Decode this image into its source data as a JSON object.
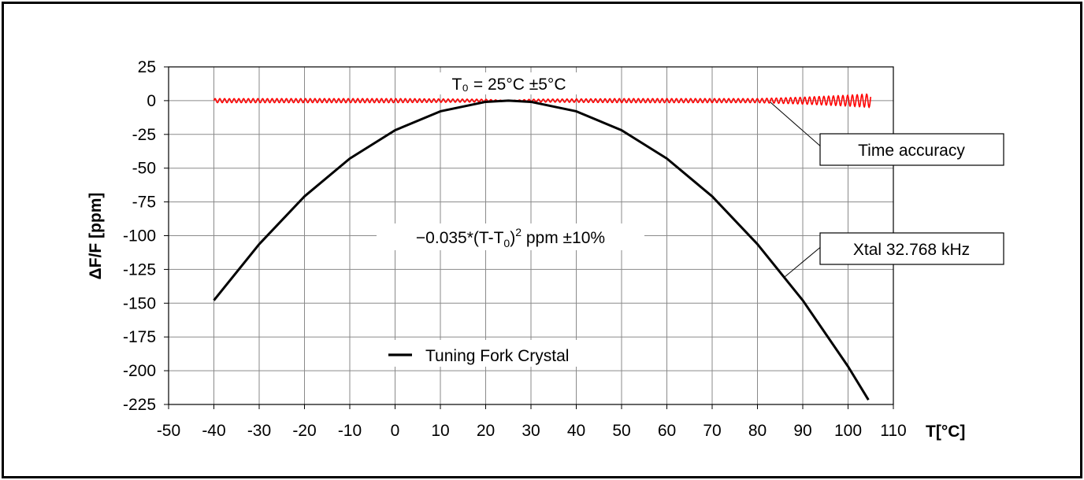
{
  "chart_data": {
    "type": "line",
    "xlabel": "T[°C]",
    "ylabel": "ΔF/F [ppm]",
    "xlim": [
      -50,
      110
    ],
    "ylim": [
      -225,
      25
    ],
    "xticks": [
      -50,
      -40,
      -30,
      -20,
      -10,
      0,
      10,
      20,
      30,
      40,
      50,
      60,
      70,
      80,
      90,
      100,
      110
    ],
    "yticks": [
      25,
      0,
      -25,
      -50,
      -75,
      -100,
      -125,
      -150,
      -175,
      -200,
      -225
    ],
    "grid": true,
    "legend": {
      "position": "bottom-center",
      "entries": [
        "Tuning Fork Crystal"
      ]
    },
    "series": [
      {
        "name": "Tuning Fork Crystal",
        "color": "#000000",
        "x": [
          -40,
          -30,
          -20,
          -10,
          0,
          10,
          20,
          25,
          30,
          40,
          50,
          60,
          70,
          80,
          90,
          100,
          104.5
        ],
        "y": [
          -147.9,
          -106.3,
          -70.9,
          -42.9,
          -21.9,
          -7.9,
          -0.9,
          0,
          -0.9,
          -7.9,
          -21.9,
          -42.9,
          -70.9,
          -106.3,
          -147.9,
          -196.9,
          -221.6
        ]
      },
      {
        "name": "Time accuracy",
        "color": "#ff0000",
        "x": [
          -40,
          -20,
          0,
          20,
          25,
          30,
          50,
          70,
          80,
          90,
          100,
          105
        ],
        "y_min": [
          -1.5,
          -1.5,
          -1.5,
          -1,
          0,
          -1,
          -1.5,
          -1.5,
          -1.5,
          -2.5,
          -4,
          -5
        ],
        "y_max": [
          1.5,
          1.5,
          1.5,
          1,
          0,
          1,
          1.5,
          1.5,
          1.5,
          2.5,
          4,
          5
        ]
      }
    ],
    "annotations": {
      "t0": "T₀ = 25°C ±5°C",
      "formula_prefix": "−0.035*(T-T",
      "formula_sub": "0",
      "formula_mid": ")",
      "formula_sup": "2",
      "formula_suffix": " ppm ±10%",
      "time_accuracy": "Time accuracy",
      "xtal": "Xtal 32.768 kHz"
    }
  }
}
